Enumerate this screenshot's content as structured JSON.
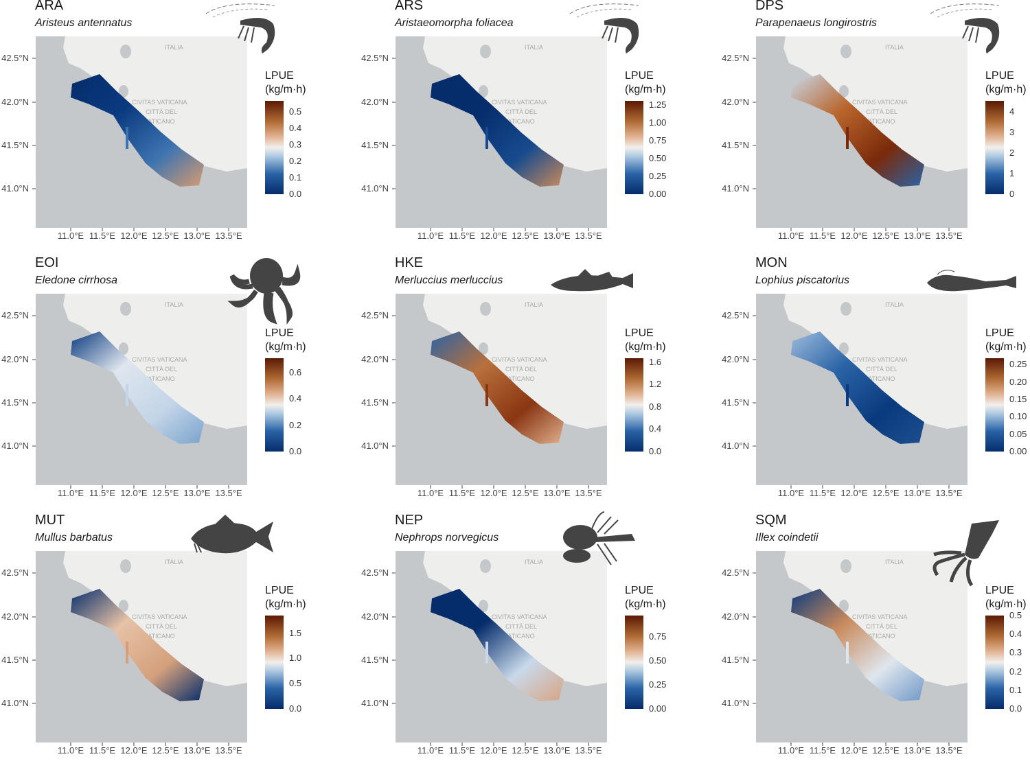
{
  "figure": {
    "legend_title_line1": "LPUE",
    "legend_title_line2": "(kg/m·h)",
    "lat_labels": [
      "42.5°N",
      "42.0°N",
      "41.5°N",
      "41.0°N"
    ],
    "lon_labels": [
      "11.0°E",
      "11.5°E",
      "12.0°E",
      "12.5°E",
      "13.0°E",
      "13.5°E"
    ],
    "map_colors": {
      "sea": "#c4c8cb",
      "land": "#eeeeec",
      "low": "#052c6b",
      "mid": "#f3efec",
      "high": "#5a1a05"
    }
  },
  "panels": [
    {
      "code": "ARA",
      "species": "Aristeus antennatus",
      "silhouette": "shrimp-icon",
      "legend_ticks": [
        "0.0",
        "0.1",
        "0.2",
        "0.3",
        "0.4",
        "0.5"
      ],
      "tick_values": [
        0,
        0.1,
        0.2,
        0.3,
        0.4,
        0.5
      ],
      "legend_max": 0.567,
      "strip_colors": [
        "#052c6b",
        "#0a3a7e",
        "#3d74b0",
        "#d79b70"
      ]
    },
    {
      "code": "ARS",
      "species": "Aristaeomorpha foliacea",
      "silhouette": "shrimp-icon",
      "legend_ticks": [
        "0.00",
        "0.25",
        "0.50",
        "0.75",
        "1.00",
        "1.25"
      ],
      "tick_values": [
        0,
        0.25,
        0.5,
        0.75,
        1.0,
        1.25
      ],
      "legend_max": 1.31,
      "strip_colors": [
        "#052c6b",
        "#052c6b",
        "#174b8e",
        "#c98a5c"
      ]
    },
    {
      "code": "DPS",
      "species": "Parapenaeus longirostris",
      "silhouette": "shrimp-icon",
      "legend_ticks": [
        "0",
        "1",
        "2",
        "3",
        "4"
      ],
      "tick_values": [
        0,
        1,
        2,
        3,
        4
      ],
      "legend_max": 4.53,
      "strip_colors": [
        "#c8d9ea",
        "#b9652c",
        "#7a2a0a",
        "#2a63a6"
      ]
    },
    {
      "code": "EOI",
      "species": "Eledone cirrhosa",
      "silhouette": "octopus-icon",
      "legend_ticks": [
        "0.0",
        "0.2",
        "0.4",
        "0.6"
      ],
      "tick_values": [
        0,
        0.2,
        0.4,
        0.6
      ],
      "legend_max": 0.71,
      "strip_colors": [
        "#0a3a7e",
        "#dfe6ee",
        "#c3d5e8",
        "#7aa3cc"
      ]
    },
    {
      "code": "HKE",
      "species": "Merluccius merluccius",
      "silhouette": "hake-icon",
      "legend_ticks": [
        "0.0",
        "0.4",
        "0.8",
        "1.2",
        "1.6"
      ],
      "tick_values": [
        0,
        0.4,
        0.8,
        1.2,
        1.6
      ],
      "legend_max": 1.67,
      "strip_colors": [
        "#2a63a6",
        "#b8703c",
        "#8a3612",
        "#e0b08f"
      ]
    },
    {
      "code": "MON",
      "species": "Lophius piscatorius",
      "silhouette": "anglerfish-icon",
      "legend_ticks": [
        "0.00",
        "0.05",
        "0.10",
        "0.15",
        "0.20",
        "0.25"
      ],
      "tick_values": [
        0,
        0.05,
        0.1,
        0.15,
        0.2,
        0.25
      ],
      "legend_max": 0.268,
      "strip_colors": [
        "#9fbcdc",
        "#2a63a6",
        "#0a3a7e",
        "#1c4f8f"
      ]
    },
    {
      "code": "MUT",
      "species": "Mullus barbatus",
      "silhouette": "red-mullet-icon",
      "legend_ticks": [
        "0.0",
        "0.5",
        "1.0",
        "1.5"
      ],
      "tick_values": [
        0,
        0.5,
        1.0,
        1.5
      ],
      "legend_max": 1.85,
      "strip_colors": [
        "#052c6b",
        "#e6c2a6",
        "#d4a07c",
        "#052c6b"
      ]
    },
    {
      "code": "NEP",
      "species": "Nephrops norvegicus",
      "silhouette": "lobster-icon",
      "legend_ticks": [
        "0.00",
        "0.25",
        "0.50",
        "0.75"
      ],
      "tick_values": [
        0,
        0.25,
        0.5,
        0.75
      ],
      "legend_max": 0.97,
      "strip_colors": [
        "#052c6b",
        "#052c6b",
        "#c8d9ea",
        "#d8a484"
      ]
    },
    {
      "code": "SQM",
      "species": "Illex coindetii",
      "silhouette": "squid-icon",
      "legend_ticks": [
        "0.0",
        "0.1",
        "0.2",
        "0.3",
        "0.4",
        "0.5"
      ],
      "tick_values": [
        0,
        0.1,
        0.2,
        0.3,
        0.4,
        0.5
      ],
      "legend_max": 0.5,
      "strip_colors": [
        "#0a3a7e",
        "#c98a5c",
        "#dfe6ee",
        "#6f98c6"
      ]
    }
  ]
}
